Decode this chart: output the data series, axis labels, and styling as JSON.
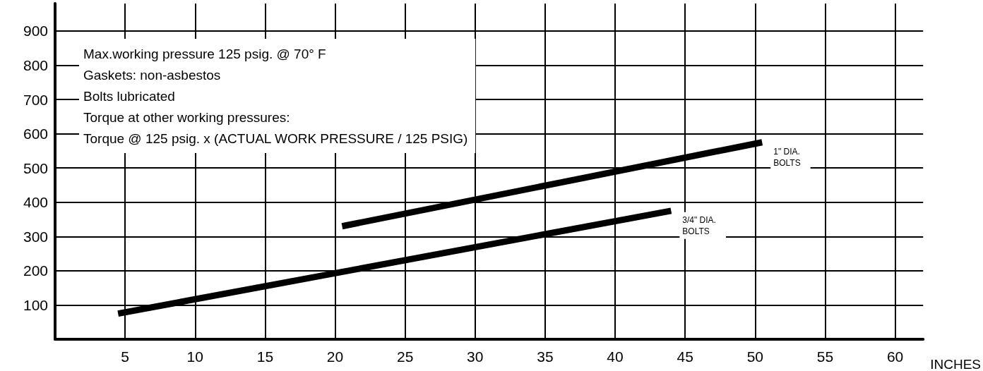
{
  "chart_data": {
    "type": "line",
    "xlabel": "INCHES",
    "series": [
      {
        "color": "#000000",
        "x": [
          20.5,
          50.5
        ],
        "values": [
          330,
          575
        ]
      },
      {
        "color": "#000000",
        "x": [
          4.5,
          44
        ],
        "values": [
          75,
          375
        ]
      }
    ],
    "xlim": [
      0,
      62
    ],
    "xticks": [
      5,
      10,
      15,
      20,
      25,
      30,
      35,
      40,
      45,
      50,
      55,
      60
    ],
    "ylim": [
      0,
      980
    ],
    "yticks": [
      100,
      200,
      300,
      400,
      500,
      600,
      700,
      800,
      900
    ],
    "grid": true,
    "marker": "none",
    "line_style": "solid",
    "annotations": [
      "Max.working pressure 125 psig. @ 70° F",
      "Gaskets: non-asbestos",
      "Bolts lubricated",
      "Torque at other working pressures:",
      "Torque @ 125 psig. x (ACTUAL WORK PRESSURE / 125 PSIG)",
      {
        "text": "1\" DIA.\nBOLTS",
        "x": 50.5,
        "y": 575
      },
      {
        "text": "3/4\" DIA.\nBOLTS",
        "x": 44,
        "y": 375
      }
    ]
  }
}
